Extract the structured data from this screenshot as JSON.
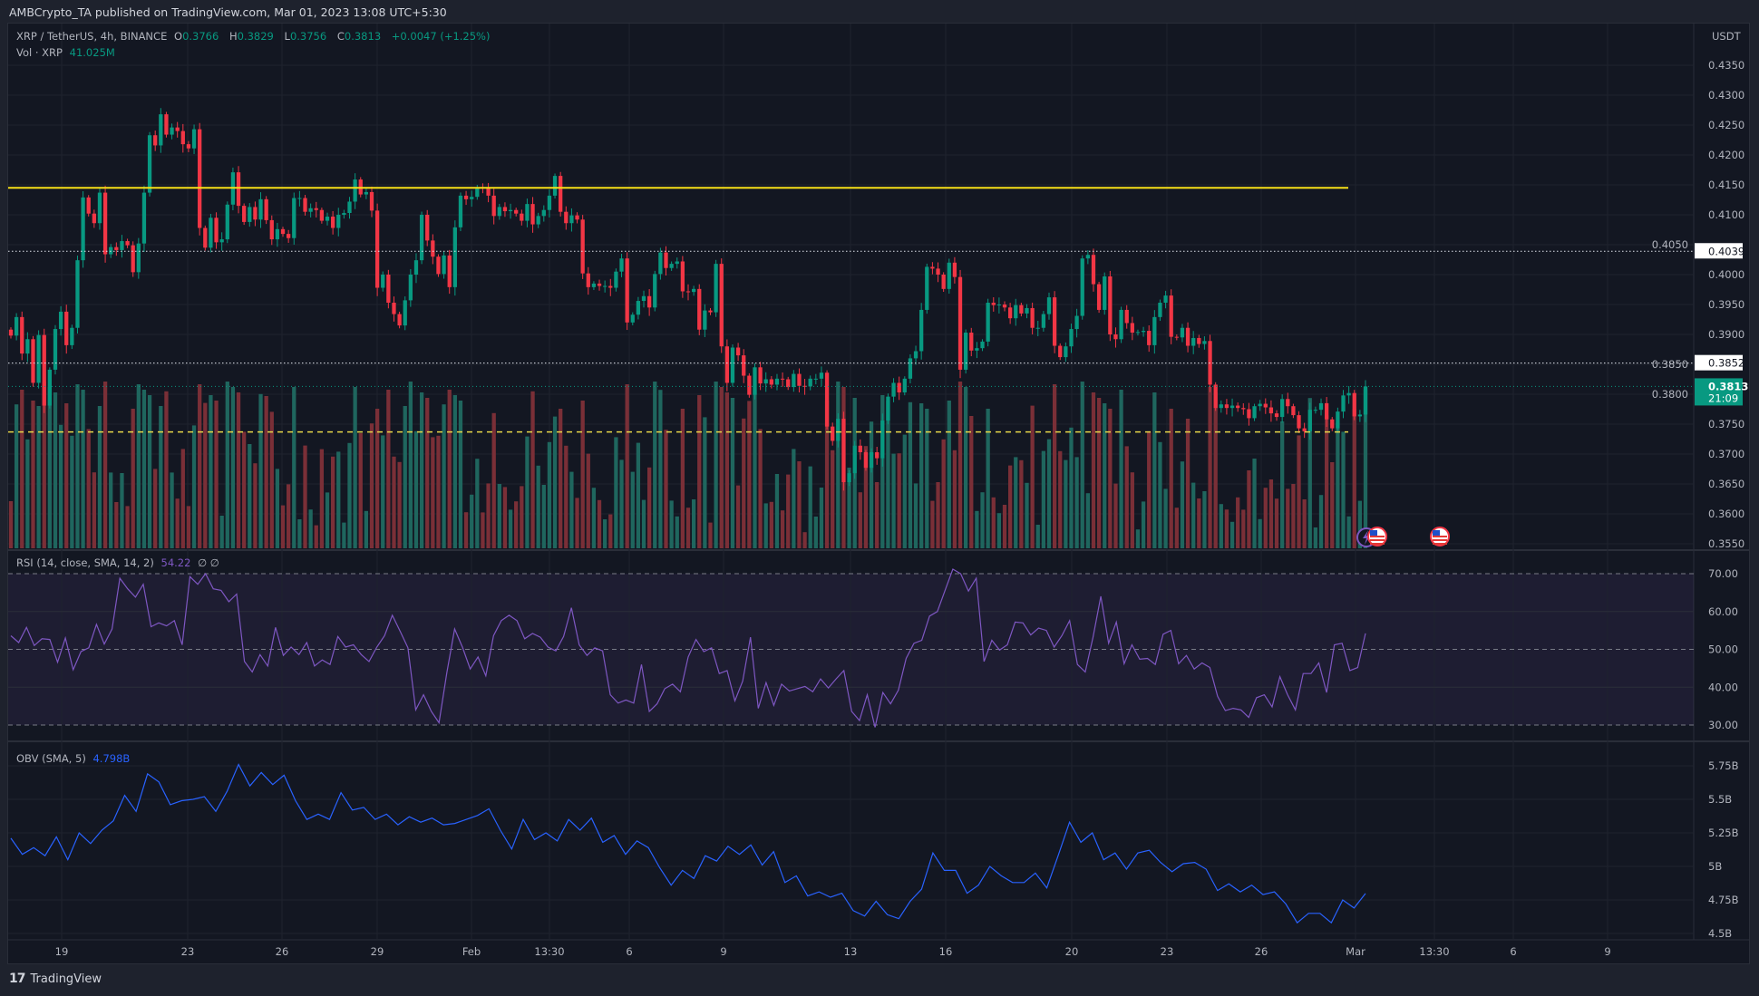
{
  "header": {
    "published": "AMBCrypto_TA published on TradingView.com, Mar 01, 2023 13:08 UTC+5:30"
  },
  "legend": {
    "symbol": "XRP / TetherUS, 4h, BINANCE",
    "o_label": "O",
    "o": "0.3766",
    "h_label": "H",
    "h": "0.3829",
    "l_label": "L",
    "l": "0.3756",
    "c_label": "C",
    "c": "0.3813",
    "change": "+0.0047 (+1.25%)",
    "vol_label": "Vol · XRP",
    "vol": "41.025M",
    "rsi_label": "RSI (14, close, SMA, 14, 2)",
    "rsi_value": "54.22",
    "rsi_extra": "∅  ∅",
    "obv_label": "OBV (SMA, 5)",
    "obv_value": "4.798B"
  },
  "price_axis": {
    "currency": "USDT",
    "ticks": [
      "0.4350",
      "0.4300",
      "0.4250",
      "0.4200",
      "0.4150",
      "0.4100",
      "0.4050",
      "0.4000",
      "0.3950",
      "0.3900",
      "0.3850",
      "0.3800",
      "0.3750",
      "0.3700",
      "0.3650",
      "0.3600",
      "0.3550"
    ],
    "level_labels": [
      {
        "price": 0.4039,
        "text": "0.4039"
      },
      {
        "price": 0.3852,
        "text": "0.3852"
      }
    ],
    "current": {
      "price": 0.3813,
      "text": "0.3813",
      "countdown": "21:09"
    }
  },
  "rsi_axis": {
    "ticks": [
      "70.00",
      "60.00",
      "50.00",
      "40.00",
      "30.00"
    ]
  },
  "obv_axis": {
    "ticks": [
      "5.75B",
      "5.5B",
      "5.25B",
      "5B",
      "4.75B",
      "4.5B"
    ]
  },
  "time_axis": {
    "labels": [
      "19",
      "23",
      "26",
      "29",
      "Feb",
      "13:30",
      "6",
      "9",
      "13",
      "16",
      "20",
      "23",
      "26",
      "Mar",
      "13:30",
      "6",
      "9"
    ]
  },
  "drawings": {
    "resistance": 0.4145,
    "support_dashed": 0.3737,
    "dotted_levels": [
      0.4039,
      0.3852
    ]
  },
  "colors": {
    "up": "#089981",
    "down": "#f23645",
    "vol_up": "#1f665e",
    "vol_down": "#7a2f37",
    "rsi": "#7e57c2",
    "obv": "#2962ff",
    "resistance": "#f7e018",
    "current": "#089981"
  },
  "icons": [
    "lightning-event-icon",
    "us-flag-event-icon",
    "us-flag-event-icon"
  ],
  "footer": {
    "brand": "TradingView"
  },
  "chart_data": [
    {
      "type": "candlestick",
      "title": "XRP / TetherUS, 4h, BINANCE",
      "ylabel": "USDT",
      "ylim": [
        0.355,
        0.435
      ],
      "x_range": [
        "Jan 17",
        "Mar 1"
      ],
      "close": [
        0.3898,
        0.3929,
        0.3868,
        0.3892,
        0.3819,
        0.3899,
        0.3781,
        0.3841,
        0.3909,
        0.3938,
        0.3882,
        0.3911,
        0.4024,
        0.4129,
        0.4102,
        0.4086,
        0.4137,
        0.4034,
        0.4046,
        0.4041,
        0.4056,
        0.4049,
        0.4004,
        0.4052,
        0.4137,
        0.4233,
        0.4216,
        0.4268,
        0.4234,
        0.4246,
        0.424,
        0.4218,
        0.4211,
        0.4243,
        0.4078,
        0.4045,
        0.4095,
        0.4054,
        0.4059,
        0.4117,
        0.4171,
        0.4115,
        0.4088,
        0.4113,
        0.4092,
        0.4126,
        0.4091,
        0.4059,
        0.4076,
        0.4068,
        0.4061,
        0.4128,
        0.4128,
        0.4105,
        0.4111,
        0.4108,
        0.409,
        0.4097,
        0.4078,
        0.41,
        0.4103,
        0.4122,
        0.4159,
        0.4134,
        0.4138,
        0.4107,
        0.3978,
        0.4,
        0.3953,
        0.3934,
        0.3915,
        0.3957,
        0.4,
        0.4024,
        0.41,
        0.4057,
        0.403,
        0.4001,
        0.4032,
        0.3979,
        0.4079,
        0.4132,
        0.4126,
        0.413,
        0.4146,
        0.4144,
        0.4132,
        0.4098,
        0.4113,
        0.4106,
        0.4108,
        0.4102,
        0.409,
        0.4118,
        0.4084,
        0.4098,
        0.4108,
        0.4132,
        0.4165,
        0.4105,
        0.4086,
        0.4099,
        0.4092,
        0.4002,
        0.3979,
        0.3985,
        0.3981,
        0.3981,
        0.3978,
        0.4005,
        0.4027,
        0.392,
        0.3933,
        0.3956,
        0.3964,
        0.3945,
        0.4001,
        0.4037,
        0.4011,
        0.4018,
        0.4022,
        0.3972,
        0.3971,
        0.3976,
        0.3908,
        0.394,
        0.3937,
        0.4018,
        0.388,
        0.3819,
        0.3878,
        0.3865,
        0.3831,
        0.3799,
        0.3845,
        0.3818,
        0.3825,
        0.3816,
        0.3826,
        0.3825,
        0.3812,
        0.3834,
        0.3814,
        0.3813,
        0.3826,
        0.3826,
        0.3836,
        0.3746,
        0.3722,
        0.3759,
        0.3653,
        0.3668,
        0.3714,
        0.3703,
        0.3677,
        0.3703,
        0.3693,
        0.3756,
        0.3796,
        0.3819,
        0.3803,
        0.3826,
        0.386,
        0.3872,
        0.3941,
        0.4013,
        0.401,
        0.4,
        0.3976,
        0.402,
        0.3996,
        0.3841,
        0.3903,
        0.3873,
        0.3877,
        0.3888,
        0.3953,
        0.3949,
        0.395,
        0.3945,
        0.3927,
        0.3949,
        0.3935,
        0.3944,
        0.3911,
        0.3911,
        0.3934,
        0.3962,
        0.3881,
        0.3862,
        0.388,
        0.3909,
        0.3931,
        0.4027,
        0.4033,
        0.3984,
        0.3941,
        0.3997,
        0.39,
        0.3892,
        0.3941,
        0.3919,
        0.3903,
        0.3904,
        0.3906,
        0.3882,
        0.3929,
        0.3953,
        0.3965,
        0.3896,
        0.3895,
        0.3911,
        0.3881,
        0.3894,
        0.3884,
        0.3889,
        0.3816,
        0.3777,
        0.3783,
        0.3777,
        0.3781,
        0.3777,
        0.3775,
        0.376,
        0.378,
        0.3784,
        0.3778,
        0.3768,
        0.3762,
        0.3792,
        0.378,
        0.3765,
        0.3743,
        0.3738,
        0.3774,
        0.3774,
        0.3785,
        0.3758,
        0.3743,
        0.3771,
        0.3798,
        0.3802,
        0.3763,
        0.3766,
        0.3813
      ],
      "last_open": 0.3766
    },
    {
      "type": "line",
      "title": "RSI (14, close, SMA, 14, 2)",
      "ylim": [
        30,
        70
      ],
      "bands": [
        30,
        50,
        70
      ],
      "values": [
        53.6,
        51.8,
        55.8,
        51.0,
        52.8,
        52.6,
        46.6,
        53.0,
        44.6,
        49.4,
        50.4,
        56.6,
        51.4,
        55.4,
        68.8,
        66.0,
        63.8,
        67.2,
        56.0,
        57.0,
        56.2,
        57.6,
        51.2,
        69.2,
        67.2,
        70.0,
        66.0,
        65.6,
        62.6,
        64.6,
        46.8,
        44.0,
        48.6,
        45.6,
        55.8,
        48.4,
        50.6,
        48.6,
        51.8,
        45.6,
        47.2,
        46.0,
        53.4,
        50.6,
        51.2,
        48.6,
        46.8,
        50.6,
        53.6,
        59.0,
        54.8,
        50.4,
        34.0,
        38.0,
        33.6,
        30.6,
        43.8,
        55.4,
        50.6,
        44.8,
        48.0,
        43.0,
        53.6,
        57.6,
        59.0,
        57.6,
        52.8,
        54.2,
        53.2,
        50.6,
        49.6,
        53.4,
        61.0,
        51.2,
        48.4,
        50.4,
        49.6,
        38.0,
        35.8,
        36.6,
        35.8,
        46.0,
        33.6,
        35.6,
        39.6,
        40.8,
        38.8,
        48.0,
        52.6,
        49.4,
        50.4,
        43.6,
        44.4,
        36.4,
        41.6,
        53.2,
        34.4,
        41.2,
        35.2,
        40.8,
        39.0,
        39.6,
        40.2,
        38.8,
        42.2,
        39.8,
        42.2,
        44.4,
        33.6,
        31.2,
        38.0,
        29.4,
        38.6,
        35.6,
        39.2,
        47.6,
        51.6,
        52.4,
        58.8,
        60.0,
        65.6,
        71.2,
        70.0,
        65.4,
        68.8,
        46.8,
        52.4,
        49.8,
        51.2,
        57.2,
        57.0,
        53.8,
        55.6,
        55.0,
        50.6,
        53.6,
        57.6,
        46.0,
        44.0,
        53.2,
        64.0,
        51.6,
        57.2,
        46.2,
        51.2,
        47.4,
        47.6,
        46.0,
        54.0,
        55.0,
        46.2,
        48.4,
        44.8,
        46.4,
        45.2,
        37.6,
        33.8,
        34.4,
        34.0,
        32.0,
        37.2,
        38.0,
        34.8,
        42.8,
        38.0,
        34.0,
        43.6,
        43.6,
        46.4,
        38.6,
        51.2,
        51.6,
        44.4,
        45.2,
        54.22
      ]
    },
    {
      "type": "line",
      "title": "OBV (SMA, 5)",
      "ylim": [
        4.5,
        5.75
      ],
      "unit": "B",
      "values": [
        5.21,
        5.09,
        5.14,
        5.08,
        5.22,
        5.05,
        5.25,
        5.17,
        5.27,
        5.34,
        5.53,
        5.41,
        5.69,
        5.63,
        5.46,
        5.49,
        5.5,
        5.52,
        5.41,
        5.56,
        5.76,
        5.6,
        5.7,
        5.61,
        5.68,
        5.49,
        5.35,
        5.39,
        5.35,
        5.55,
        5.42,
        5.44,
        5.35,
        5.39,
        5.31,
        5.37,
        5.33,
        5.36,
        5.31,
        5.32,
        5.35,
        5.38,
        5.43,
        5.27,
        5.13,
        5.35,
        5.2,
        5.25,
        5.19,
        5.35,
        5.27,
        5.36,
        5.18,
        5.23,
        5.09,
        5.19,
        5.14,
        4.99,
        4.86,
        4.97,
        4.91,
        5.08,
        5.04,
        5.15,
        5.09,
        5.16,
        5.01,
        5.11,
        4.88,
        4.93,
        4.78,
        4.81,
        4.77,
        4.8,
        4.67,
        4.63,
        4.74,
        4.64,
        4.61,
        4.74,
        4.83,
        5.1,
        4.97,
        4.97,
        4.8,
        4.86,
        5.0,
        4.93,
        4.88,
        4.88,
        4.95,
        4.84,
        5.08,
        5.33,
        5.18,
        5.25,
        5.05,
        5.1,
        4.98,
        5.1,
        5.12,
        5.03,
        4.96,
        5.02,
        5.03,
        4.98,
        4.82,
        4.87,
        4.81,
        4.86,
        4.79,
        4.81,
        4.72,
        4.58,
        4.65,
        4.65,
        4.58,
        4.75,
        4.69,
        4.798
      ]
    }
  ]
}
